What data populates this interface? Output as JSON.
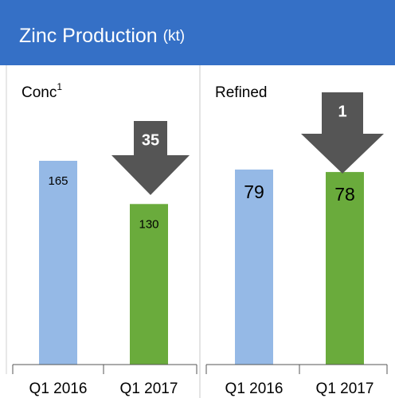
{
  "header": {
    "title": "Zinc Production",
    "unit": "(kt)"
  },
  "chart_data": [
    {
      "type": "bar",
      "title": "Conc",
      "title_superscript": "1",
      "categories": [
        "Q1 2016",
        "Q1 2017"
      ],
      "values": [
        165,
        130
      ],
      "colors": [
        "#95b9e6",
        "#6aab3c"
      ],
      "annotation": 35
    },
    {
      "type": "bar",
      "title": "Refined",
      "categories": [
        "Q1 2016",
        "Q1 2017"
      ],
      "values": [
        79,
        78
      ],
      "colors": [
        "#95b9e6",
        "#6aab3c"
      ],
      "annotation": 1
    }
  ]
}
